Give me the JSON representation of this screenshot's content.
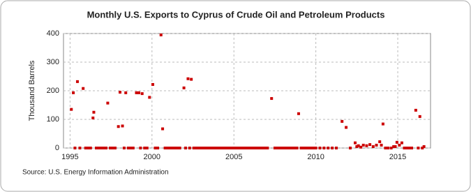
{
  "chart_data": {
    "type": "scatter",
    "title": "Monthly U.S. Exports to Cyprus of Crude Oil and Petroleum Products",
    "ylabel": "Thousand Barrels",
    "source": "Source: U.S. Energy Information Administration",
    "xlim": [
      1994.6,
      2017.0
    ],
    "ylim": [
      0,
      400
    ],
    "xticks": [
      1995,
      2000,
      2005,
      2010,
      2015
    ],
    "yticks": [
      0,
      100,
      200,
      300,
      400
    ],
    "grid": true,
    "series": [
      {
        "color": "#cc0000",
        "x": [
          1995.08,
          1995.2,
          1995.3,
          1995.45,
          1995.6,
          1995.8,
          1995.95,
          1996.1,
          1996.25,
          1996.4,
          1996.45,
          1996.6,
          1996.75,
          1996.9,
          1997.05,
          1997.2,
          1997.3,
          1997.45,
          1997.6,
          1997.75,
          1997.95,
          1998.05,
          1998.2,
          1998.3,
          1998.4,
          1998.55,
          1998.7,
          1998.85,
          1999.05,
          1999.2,
          1999.3,
          1999.4,
          1999.55,
          1999.7,
          1999.85,
          2000.05,
          2000.2,
          2000.35,
          2000.55,
          2000.65,
          2000.8,
          2000.95,
          2001.1,
          2001.25,
          2001.4,
          2001.55,
          2001.7,
          2001.95,
          2002.05,
          2002.2,
          2002.3,
          2002.4,
          2002.55,
          2002.7,
          2002.85,
          2003.0,
          2003.15,
          2003.3,
          2003.45,
          2003.6,
          2003.75,
          2003.9,
          2004.05,
          2004.2,
          2004.35,
          2004.5,
          2004.65,
          2004.8,
          2004.95,
          2005.1,
          2005.25,
          2005.4,
          2005.55,
          2005.7,
          2005.85,
          2006.0,
          2006.15,
          2006.3,
          2006.45,
          2006.6,
          2006.75,
          2006.9,
          2007.05,
          2007.3,
          2007.5,
          2007.65,
          2007.8,
          2007.95,
          2008.1,
          2008.25,
          2008.4,
          2008.55,
          2008.7,
          2008.85,
          2008.95,
          2009.1,
          2009.25,
          2009.4,
          2009.55,
          2009.7,
          2009.85,
          2010.0,
          2010.25,
          2010.5,
          2010.75,
          2011.0,
          2011.25,
          2011.6,
          2011.85,
          2012.1,
          2012.4,
          2012.5,
          2012.6,
          2012.75,
          2012.9,
          2013.1,
          2013.3,
          2013.5,
          2013.7,
          2013.9,
          2014.0,
          2014.1,
          2014.25,
          2014.4,
          2014.6,
          2014.75,
          2014.85,
          2014.95,
          2015.1,
          2015.25,
          2015.4,
          2015.55,
          2015.7,
          2015.85,
          2016.1,
          2016.25,
          2016.35,
          2016.5,
          2016.6
        ],
        "values": [
          135,
          193,
          0,
          232,
          0,
          208,
          0,
          0,
          0,
          105,
          125,
          0,
          0,
          0,
          0,
          0,
          157,
          0,
          0,
          0,
          75,
          195,
          77,
          0,
          193,
          0,
          0,
          0,
          193,
          193,
          0,
          190,
          0,
          0,
          177,
          222,
          0,
          0,
          395,
          67,
          0,
          0,
          0,
          0,
          0,
          0,
          0,
          210,
          0,
          242,
          0,
          240,
          0,
          0,
          0,
          0,
          0,
          0,
          0,
          0,
          0,
          0,
          0,
          0,
          0,
          0,
          0,
          0,
          0,
          0,
          0,
          0,
          0,
          0,
          0,
          0,
          0,
          0,
          0,
          0,
          0,
          0,
          0,
          173,
          0,
          0,
          0,
          0,
          0,
          0,
          0,
          0,
          0,
          0,
          120,
          0,
          0,
          0,
          0,
          0,
          0,
          0,
          0,
          0,
          0,
          0,
          0,
          93,
          72,
          0,
          18,
          5,
          8,
          3,
          10,
          8,
          12,
          5,
          10,
          22,
          10,
          84,
          0,
          0,
          0,
          5,
          5,
          20,
          10,
          18,
          0,
          0,
          0,
          0,
          132,
          0,
          110,
          0,
          5
        ]
      }
    ]
  }
}
